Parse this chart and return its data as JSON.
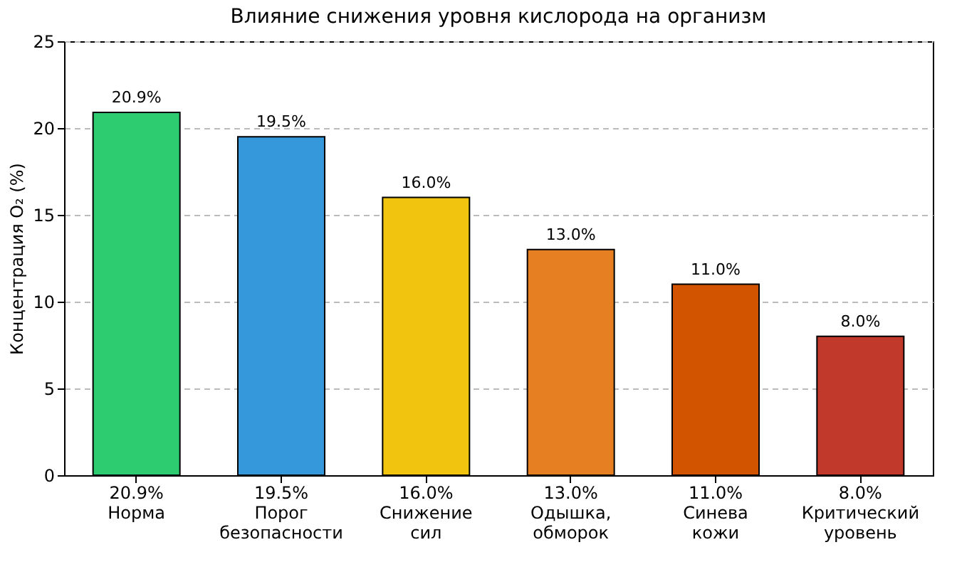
{
  "chart_data": {
    "type": "bar",
    "title": "Влияние снижения уровня кислорода на организм",
    "ylabel": "Концентрация O₂ (%)",
    "categories": [
      "20.9%\nНорма",
      "19.5%\nПорог\nбезопасности",
      "16.0%\nСнижение\nсил",
      "13.0%\nОдышка,\nобморок",
      "11.0%\nСинева\nкожи",
      "8.0%\nКритический\nуровень"
    ],
    "values": [
      20.9,
      19.5,
      16.0,
      13.0,
      11.0,
      8.0
    ],
    "colors": [
      "#2ecc71",
      "#3498db",
      "#f1c40f",
      "#e67e22",
      "#d35400",
      "#c0392b"
    ],
    "value_labels": [
      "20.9%",
      "19.5%",
      "16.0%",
      "13.0%",
      "11.0%",
      "8.0%"
    ],
    "ylim": [
      0,
      25
    ],
    "yticks": [
      0,
      5,
      10,
      15,
      20,
      25
    ],
    "grid": "y",
    "legend": false
  }
}
